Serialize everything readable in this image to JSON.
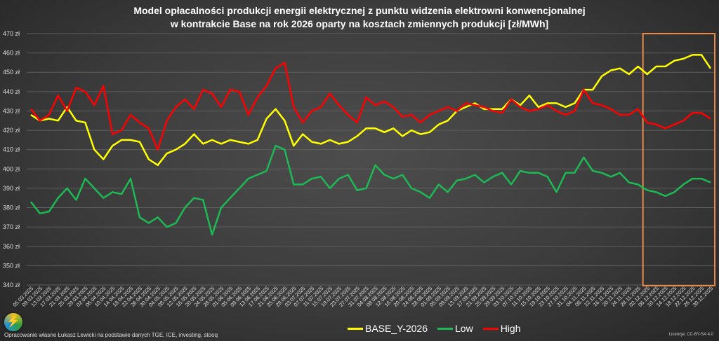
{
  "title": [
    "Model opłacalności produkcji energii elektrycznej z punktu widzenia elektrowni konwencjonalnej",
    "w kontrakcie Base na rok 2026 oparty na kosztach zmiennych produkcji [zł/MWh]"
  ],
  "footer": {
    "source": "Opracowanie własne Łukasz Lewicki na podstawie danych TGE, ICE, investing, stooq",
    "license": "Licencja: CC-BY-SA 4.0"
  },
  "chart_data": {
    "type": "line",
    "title": "Model opłacalności produkcji energii elektrycznej z punktu widzenia elektrowni konwencjonalnej w kontrakcie Base na rok 2026 oparty na kosztach zmiennych produkcji [zł/MWh]",
    "xlabel": "",
    "ylabel": "",
    "ylim": [
      340,
      470
    ],
    "yticks": [
      "340 zł",
      "350 zł",
      "360 zł",
      "370 zł",
      "380 zł",
      "390 zł",
      "400 zł",
      "410 zł",
      "420 zł",
      "430 zł",
      "440 zł",
      "450 zł",
      "460 zł",
      "470 zł"
    ],
    "grid": true,
    "legend": "bottom",
    "highlight_range": [
      "02.12.2025",
      "30.12.2025"
    ],
    "highlight_color": "#e8894a",
    "categories": [
      "05.03.2025",
      "09.03.2025",
      "13.03.2025",
      "17.03.2025",
      "21.03.2025",
      "25.03.2025",
      "29.03.2025",
      "02.04.2025",
      "06.04.2025",
      "10.04.2025",
      "14.04.2025",
      "18.04.2025",
      "22.04.2025",
      "26.04.2025",
      "30.04.2025",
      "04.05.2025",
      "08.05.2025",
      "12.05.2025",
      "16.05.2025",
      "20.05.2025",
      "24.05.2025",
      "28.05.2025",
      "01.06.2025",
      "05.06.2025",
      "09.06.2025",
      "13.06.2025",
      "17.06.2025",
      "21.06.2025",
      "25.06.2025",
      "29.06.2025",
      "03.07.2025",
      "07.07.2025",
      "11.07.2025",
      "15.07.2025",
      "19.07.2025",
      "23.07.2025",
      "27.07.2025",
      "31.07.2025",
      "04.08.2025",
      "08.08.2025",
      "12.08.2025",
      "16.08.2025",
      "20.08.2025",
      "24.08.2025",
      "28.08.2025",
      "01.09.2025",
      "05.09.2025",
      "09.09.2025",
      "13.09.2025",
      "17.09.2025",
      "21.09.2025",
      "25.09.2025",
      "29.09.2025",
      "03.10.2025",
      "07.10.2025",
      "11.10.2025",
      "15.10.2025",
      "19.10.2025",
      "23.10.2025",
      "27.10.2025",
      "31.10.2025",
      "04.11.2025",
      "08.11.2025",
      "12.11.2025",
      "16.11.2025",
      "20.11.2025",
      "24.11.2025",
      "28.11.2025",
      "02.12.2025",
      "06.12.2025",
      "10.12.2025",
      "14.12.2025",
      "18.12.2025",
      "22.12.2025",
      "26.12.2025",
      "30.12.2025"
    ],
    "series": [
      {
        "name": "BASE_Y-2026",
        "color": "#ffff00",
        "values": [
          428,
          425,
          426,
          425,
          432,
          425,
          424,
          410,
          405,
          412,
          415,
          415,
          414,
          405,
          402,
          408,
          410,
          413,
          418,
          413,
          415,
          413,
          415,
          414,
          413,
          415,
          426,
          431,
          425,
          412,
          418,
          414,
          413,
          415,
          413,
          414,
          417,
          421,
          421,
          419,
          421,
          417,
          420,
          418,
          419,
          423,
          425,
          430,
          432,
          434,
          431,
          431,
          431,
          436,
          433,
          438,
          432,
          434,
          434,
          432,
          434,
          441,
          441,
          448,
          451,
          452,
          449,
          453,
          449,
          453,
          453,
          456,
          457,
          459,
          459,
          452
        ]
      },
      {
        "name": "Low",
        "color": "#1db954",
        "values": [
          383,
          377,
          378,
          385,
          390,
          384,
          395,
          390,
          385,
          388,
          387,
          395,
          375,
          372,
          375,
          370,
          372,
          380,
          385,
          384,
          366,
          380,
          385,
          390,
          395,
          397,
          399,
          412,
          410,
          392,
          392,
          395,
          396,
          390,
          395,
          397,
          389,
          390,
          402,
          397,
          395,
          397,
          390,
          388,
          385,
          392,
          388,
          394,
          395,
          397,
          393,
          396,
          398,
          392,
          399,
          398,
          398,
          396,
          388,
          398,
          398,
          406,
          399,
          398,
          396,
          398,
          393,
          392,
          389,
          388,
          386,
          388,
          392,
          395,
          395,
          393
        ]
      },
      {
        "name": "High",
        "color": "#ff0000",
        "values": [
          431,
          425,
          428,
          438,
          430,
          442,
          440,
          433,
          443,
          418,
          420,
          428,
          424,
          421,
          410,
          425,
          432,
          436,
          431,
          441,
          439,
          432,
          441,
          440,
          428,
          437,
          443,
          452,
          455,
          432,
          424,
          430,
          432,
          439,
          433,
          428,
          424,
          437,
          433,
          435,
          432,
          427,
          428,
          424,
          428,
          430,
          432,
          430,
          434,
          433,
          432,
          430,
          429,
          436,
          432,
          430,
          431,
          433,
          430,
          428,
          430,
          441,
          434,
          433,
          431,
          428,
          428,
          431,
          424,
          423,
          421,
          423,
          425,
          429,
          429,
          426
        ]
      }
    ]
  }
}
